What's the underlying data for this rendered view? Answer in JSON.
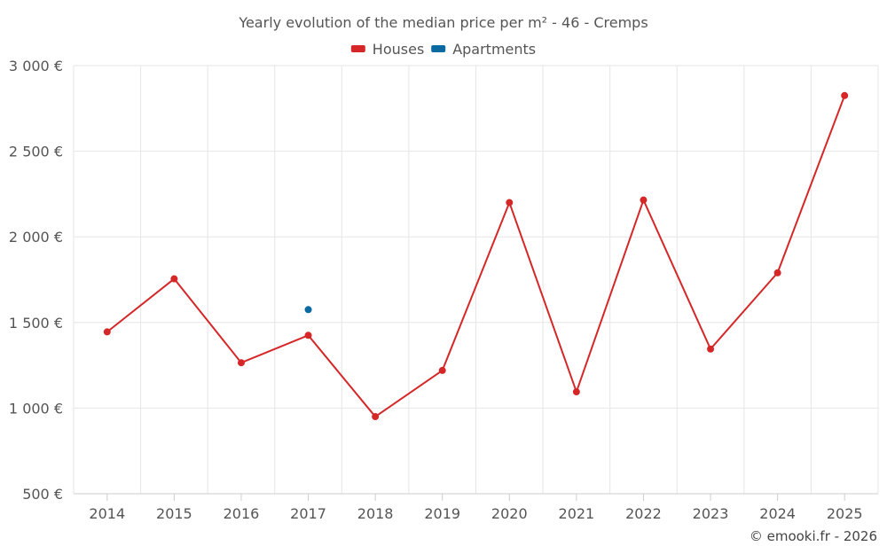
{
  "chart_data": {
    "type": "line",
    "title": "Yearly evolution of the median price per m² - 46 - Cremps",
    "categories": [
      "2014",
      "2015",
      "2016",
      "2017",
      "2018",
      "2019",
      "2020",
      "2021",
      "2022",
      "2023",
      "2024",
      "2025"
    ],
    "series": [
      {
        "name": "Houses",
        "color": "#d62728",
        "values": [
          1445,
          1755,
          1265,
          1425,
          950,
          1220,
          2200,
          1095,
          2215,
          1345,
          1790,
          2825
        ]
      },
      {
        "name": "Apartments",
        "color": "#0b6aa2",
        "values": [
          null,
          null,
          null,
          1575,
          null,
          null,
          null,
          null,
          null,
          null,
          null,
          null
        ]
      }
    ],
    "ylim": [
      500,
      3000
    ],
    "yticks": [
      500,
      1000,
      1500,
      2000,
      2500,
      3000
    ],
    "ytick_labels": [
      "500 €",
      "1 000 €",
      "1 500 €",
      "2 000 €",
      "2 500 €",
      "3 000 €"
    ],
    "xlabel": "",
    "ylabel": "",
    "grid": true,
    "legend_position": "top-center"
  },
  "credit": "© emooki.fr - 2026",
  "colors": {
    "grid": "#e6e6e6",
    "axis": "#cccccc",
    "text": "#555555"
  }
}
